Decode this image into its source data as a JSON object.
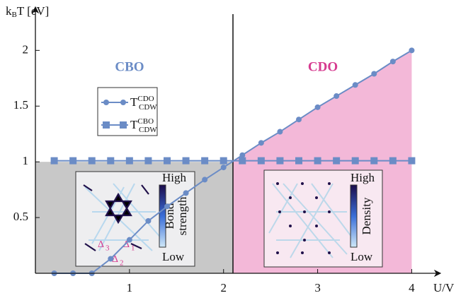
{
  "chart_data": {
    "type": "line",
    "ylabel": [
      "k",
      "B",
      "T [eV]"
    ],
    "xlabel": "U/V",
    "x": [
      0.2,
      0.4,
      0.6,
      0.8,
      1.0,
      1.2,
      1.4,
      1.6,
      1.8,
      2.0,
      2.2,
      2.4,
      2.6,
      2.8,
      3.0,
      3.2,
      3.4,
      3.6,
      3.8,
      4.0
    ],
    "series": [
      {
        "name": "T",
        "name_sub": "CDW",
        "name_sup": "CDO",
        "color": "#6b8cc6",
        "marker": "circle",
        "values": [
          0,
          0,
          0,
          0.13,
          0.3,
          0.47,
          0.6,
          0.72,
          0.84,
          0.95,
          1.06,
          1.17,
          1.27,
          1.38,
          1.49,
          1.59,
          1.69,
          1.79,
          1.9,
          2.0
        ]
      },
      {
        "name": "T",
        "name_sub": "CDW",
        "name_sup": "CBO",
        "color": "#6b8cc6",
        "marker": "square",
        "values": [
          1.01,
          1.01,
          1.01,
          1.01,
          1.01,
          1.01,
          1.01,
          1.01,
          1.01,
          1.01,
          1.01,
          1.01,
          1.01,
          1.01,
          1.01,
          1.01,
          1.01,
          1.01,
          1.01,
          1.01
        ]
      }
    ],
    "regions": [
      {
        "label": "CBO",
        "color": "#c8c8c8",
        "text_color": "#6b8cc6",
        "xlim": [
          0,
          2.1
        ],
        "ylim": [
          0,
          1
        ]
      },
      {
        "label": "CDO",
        "color": "#f3b8d8",
        "text_color": "#d63a8f",
        "xlim": [
          2.1,
          4.0
        ]
      }
    ],
    "xlim": [
      0,
      4.2
    ],
    "ylim": [
      0,
      2.3
    ],
    "xticks": [
      1,
      2,
      3,
      4
    ],
    "yticks": [
      0.5,
      1,
      {
        "value": 1.5,
        "label": "1.5"
      },
      2
    ],
    "insets": [
      {
        "high": "High",
        "low": "Low",
        "colorbar_label": [
          "Bond",
          "strength"
        ],
        "annotations": [
          "Δ",
          "3",
          "Δ",
          "1",
          "Δ",
          "2"
        ]
      },
      {
        "high": "High",
        "low": "Low",
        "colorbar_label": [
          "Density"
        ]
      }
    ]
  }
}
